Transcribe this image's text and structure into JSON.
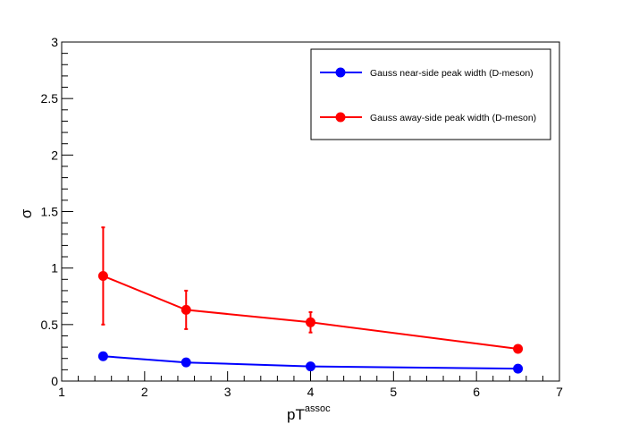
{
  "chart_data": {
    "type": "line",
    "xlabel": "pT",
    "xlabel_sup": "assoc",
    "ylabel": "σ",
    "xlim": [
      1,
      7
    ],
    "ylim": [
      0,
      3
    ],
    "x_ticks": [
      "1",
      "2",
      "3",
      "4",
      "5",
      "6",
      "7"
    ],
    "y_ticks": [
      "0",
      "0.5",
      "1",
      "1.5",
      "2",
      "2.5",
      "3"
    ],
    "grid": false,
    "legend_position": "top-right",
    "series": [
      {
        "name": "Gauss near-side peak width (D-meson)",
        "color": "#0000ff",
        "marker": "circle",
        "points": [
          {
            "x": 1.5,
            "y": 0.22,
            "err": 0.0
          },
          {
            "x": 2.5,
            "y": 0.165,
            "err": 0.0
          },
          {
            "x": 4.0,
            "y": 0.13,
            "err": 0.0
          },
          {
            "x": 6.5,
            "y": 0.11,
            "err": 0.0
          }
        ]
      },
      {
        "name": "Gauss away-side peak width (D-meson)",
        "color": "#ff0000",
        "marker": "circle",
        "points": [
          {
            "x": 1.5,
            "y": 0.93,
            "err": 0.43
          },
          {
            "x": 2.5,
            "y": 0.63,
            "err": 0.17
          },
          {
            "x": 4.0,
            "y": 0.52,
            "err": 0.09
          },
          {
            "x": 6.5,
            "y": 0.285,
            "err": 0.0
          }
        ]
      }
    ]
  }
}
